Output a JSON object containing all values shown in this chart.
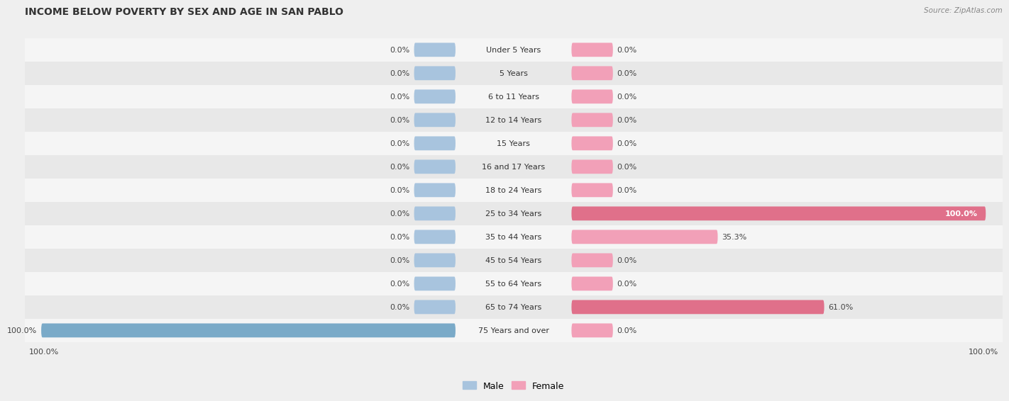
{
  "title": "INCOME BELOW POVERTY BY SEX AND AGE IN SAN PABLO",
  "source": "Source: ZipAtlas.com",
  "categories": [
    "Under 5 Years",
    "5 Years",
    "6 to 11 Years",
    "12 to 14 Years",
    "15 Years",
    "16 and 17 Years",
    "18 to 24 Years",
    "25 to 34 Years",
    "35 to 44 Years",
    "45 to 54 Years",
    "55 to 64 Years",
    "65 to 74 Years",
    "75 Years and over"
  ],
  "male_values": [
    0.0,
    0.0,
    0.0,
    0.0,
    0.0,
    0.0,
    0.0,
    0.0,
    0.0,
    0.0,
    0.0,
    0.0,
    100.0
  ],
  "female_values": [
    0.0,
    0.0,
    0.0,
    0.0,
    0.0,
    0.0,
    0.0,
    100.0,
    35.3,
    0.0,
    0.0,
    61.0,
    0.0
  ],
  "male_color": "#a8c4de",
  "female_color": "#f2a0b8",
  "female_strong_color": "#e0708a",
  "male_strong_color": "#7aaac8",
  "bg_color": "#efefef",
  "row_even_color": "#f5f5f5",
  "row_odd_color": "#e8e8e8",
  "max_value": 100.0,
  "title_fontsize": 10,
  "label_fontsize": 8,
  "value_fontsize": 8,
  "legend_fontsize": 9,
  "axis_label_fontsize": 8
}
